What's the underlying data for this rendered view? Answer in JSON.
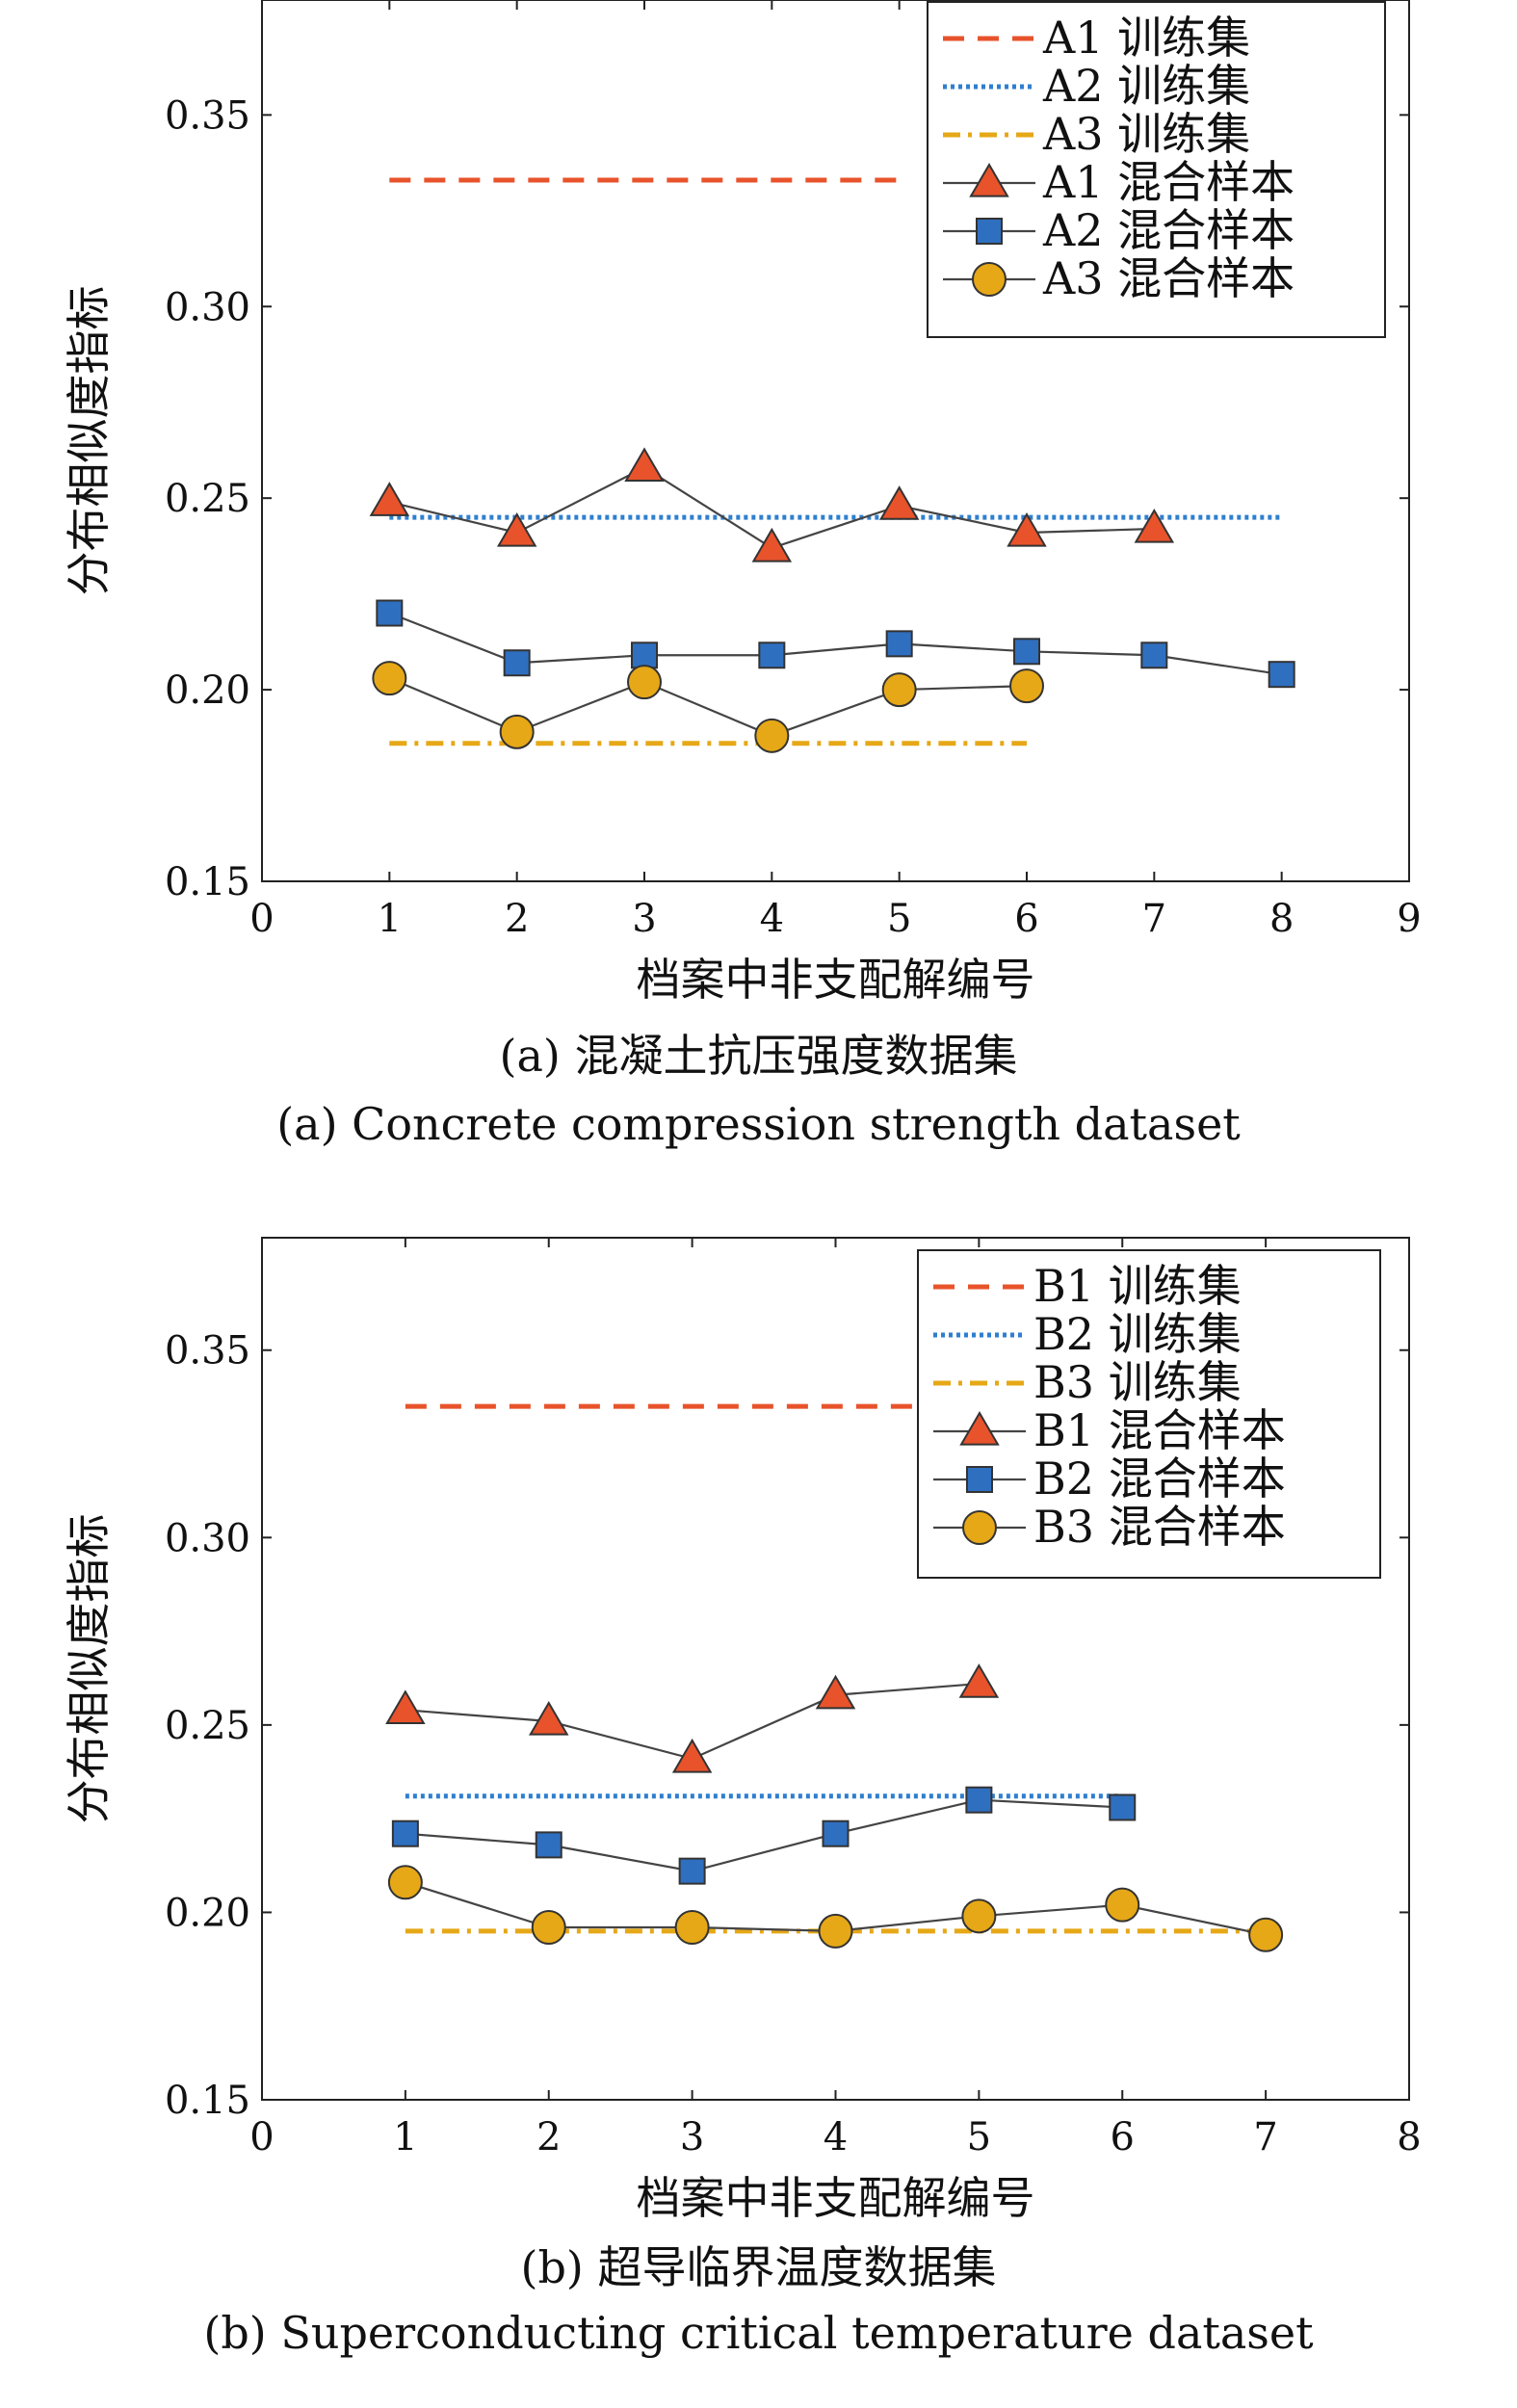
{
  "chart_data": [
    {
      "type": "line",
      "id": "a",
      "caption_cn": "(a) 混凝土抗压强度数据集",
      "caption_en": "(a) Concrete compression strength dataset",
      "xlabel": "档案中非支配解编号",
      "ylabel": "分布相似度指标",
      "xlim": [
        0,
        9
      ],
      "ylim": [
        0.15,
        0.38
      ],
      "xticks": [
        0,
        1,
        2,
        3,
        4,
        5,
        6,
        7,
        8,
        9
      ],
      "yticks": [
        0.15,
        0.2,
        0.25,
        0.3,
        0.35
      ],
      "legend_position": "top-right",
      "series": [
        {
          "name": "A1 训练集",
          "style": "dashed",
          "color": "#e8532b",
          "marker": "none",
          "x": [
            1,
            5
          ],
          "y": [
            0.333,
            0.333
          ]
        },
        {
          "name": "A2 训练集",
          "style": "dotted",
          "color": "#2f7fd0",
          "marker": "none",
          "x": [
            1,
            8
          ],
          "y": [
            0.245,
            0.245
          ]
        },
        {
          "name": "A3 训练集",
          "style": "dashdot",
          "color": "#e6a817",
          "marker": "none",
          "x": [
            1,
            6
          ],
          "y": [
            0.186,
            0.186
          ]
        },
        {
          "name": "A1 混合样本",
          "style": "solid",
          "color": "#e8532b",
          "marker": "triangle",
          "x": [
            1,
            2,
            3,
            4,
            5,
            6,
            7
          ],
          "y": [
            0.249,
            0.241,
            0.258,
            0.237,
            0.248,
            0.241,
            0.242
          ]
        },
        {
          "name": "A2 混合样本",
          "style": "solid",
          "color": "#2f6fc0",
          "marker": "square",
          "x": [
            1,
            2,
            3,
            4,
            5,
            6,
            7,
            8
          ],
          "y": [
            0.22,
            0.207,
            0.209,
            0.209,
            0.212,
            0.21,
            0.209,
            0.204
          ]
        },
        {
          "name": "A3 混合样本",
          "style": "solid",
          "color": "#e6a817",
          "marker": "circle",
          "x": [
            1,
            2,
            3,
            4,
            5,
            6
          ],
          "y": [
            0.203,
            0.189,
            0.202,
            0.188,
            0.2,
            0.201
          ]
        }
      ]
    },
    {
      "type": "line",
      "id": "b",
      "caption_cn": "(b) 超导临界温度数据集",
      "caption_en": "(b) Superconducting critical temperature dataset",
      "xlabel": "档案中非支配解编号",
      "ylabel": "分布相似度指标",
      "xlim": [
        0,
        8
      ],
      "ylim": [
        0.15,
        0.38
      ],
      "xticks": [
        0,
        1,
        2,
        3,
        4,
        5,
        6,
        7,
        8
      ],
      "yticks": [
        0.15,
        0.2,
        0.25,
        0.3,
        0.35
      ],
      "legend_position": "top-right",
      "series": [
        {
          "name": "B1 训练集",
          "style": "dashed",
          "color": "#e8532b",
          "marker": "none",
          "x": [
            1,
            5
          ],
          "y": [
            0.335,
            0.335
          ]
        },
        {
          "name": "B2 训练集",
          "style": "dotted",
          "color": "#2f7fd0",
          "marker": "none",
          "x": [
            1,
            6
          ],
          "y": [
            0.231,
            0.231
          ]
        },
        {
          "name": "B3 训练集",
          "style": "dashdot",
          "color": "#e6a817",
          "marker": "none",
          "x": [
            1,
            7
          ],
          "y": [
            0.195,
            0.195
          ]
        },
        {
          "name": "B1 混合样本",
          "style": "solid",
          "color": "#e8532b",
          "marker": "triangle",
          "x": [
            1,
            2,
            3,
            4,
            5
          ],
          "y": [
            0.254,
            0.251,
            0.241,
            0.258,
            0.261
          ]
        },
        {
          "name": "B2 混合样本",
          "style": "solid",
          "color": "#2f6fc0",
          "marker": "square",
          "x": [
            1,
            2,
            3,
            4,
            5,
            6
          ],
          "y": [
            0.221,
            0.218,
            0.211,
            0.221,
            0.23,
            0.228
          ]
        },
        {
          "name": "B3 混合样本",
          "style": "solid",
          "color": "#e6a817",
          "marker": "circle",
          "x": [
            1,
            2,
            3,
            4,
            5,
            6,
            7
          ],
          "y": [
            0.208,
            0.196,
            0.196,
            0.195,
            0.199,
            0.202,
            0.194
          ]
        }
      ]
    }
  ]
}
